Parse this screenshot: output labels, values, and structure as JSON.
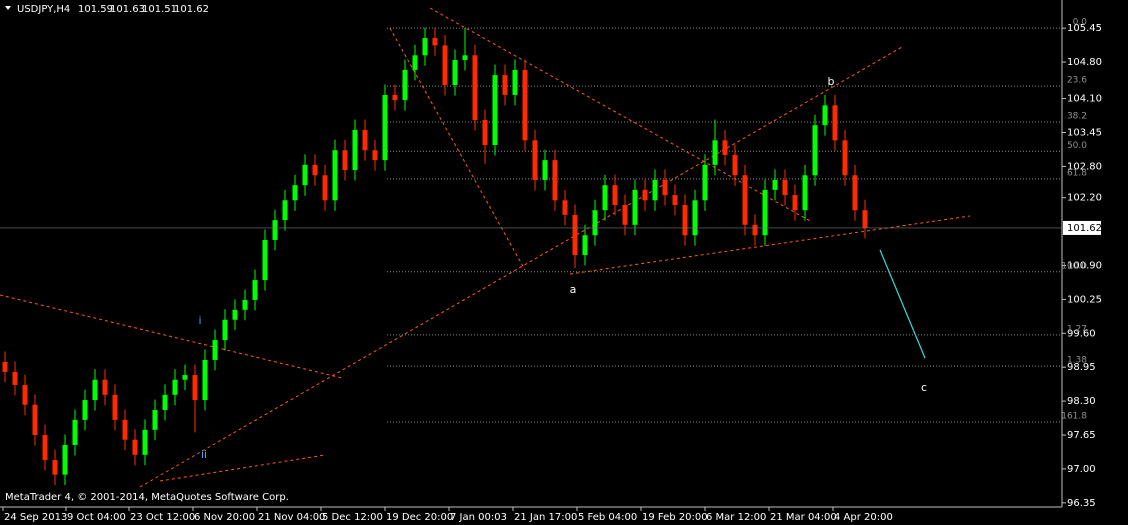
{
  "chart_data": {
    "type": "candlestick",
    "title": "USDJPY,H4",
    "header_ohlc": [
      101.59,
      101.63,
      101.51,
      101.62
    ],
    "watermark": "MetaTrader 4, © 2001-2014, MetaQuotes Software Corp.",
    "current_price": 101.62,
    "ylim": [
      96.27,
      105.99
    ],
    "yticks": [
      105.45,
      {
        "value": 104.8,
        "label": "104.80"
      },
      {
        "value": 104.1,
        "label": "104.10"
      },
      103.45,
      {
        "value": 102.8,
        "label": "102.80"
      },
      {
        "value": 102.2,
        "label": "102.20"
      },
      {
        "value": 100.9,
        "label": "100.90"
      },
      100.25,
      {
        "value": 99.6,
        "label": "99.60"
      },
      98.95,
      {
        "value": 98.3,
        "label": "98.30"
      },
      97.65,
      {
        "value": 97,
        "label": "97.00"
      },
      96.35
    ],
    "xlim": [
      0,
      106.2
    ],
    "xticks": [
      {
        "value": 0.3,
        "label": "24 Sep 2013"
      },
      {
        "value": 6.6,
        "label": "9 Oct 04:00"
      },
      {
        "value": 12.9,
        "label": "23 Oct 12:00"
      },
      {
        "value": 19.3,
        "label": "6 Nov 20:00"
      },
      {
        "value": 25.7,
        "label": "21 Nov 04:00"
      },
      {
        "value": 32.1,
        "label": "5 Dec 12:00"
      },
      {
        "value": 38.5,
        "label": "19 Dec 20:00"
      },
      {
        "value": 44.9,
        "label": "7 Jan 00:03"
      },
      {
        "value": 51.3,
        "label": "21 Jan 17:00"
      },
      {
        "value": 57.7,
        "label": "5 Feb 04:00"
      },
      {
        "value": 64.1,
        "label": "19 Feb 20:00"
      },
      {
        "value": 70.5,
        "label": "6 Mar 12:00"
      },
      {
        "value": 76.9,
        "label": "21 Mar 04:00"
      },
      {
        "value": 83.3,
        "label": "4 Apr 20:00"
      }
    ],
    "up_color": "#00ff00",
    "down_color": "#ff2a00",
    "open": [
      99.05,
      98.86,
      98.61,
      98.23,
      97.65,
      97.17,
      96.89,
      97.46,
      97.94,
      98.32,
      98.71,
      98.42,
      97.94,
      97.56,
      97.27,
      97.75,
      98.13,
      98.42,
      98.71,
      98.8,
      98.32,
      99.09,
      99.47,
      99.86,
      100.05,
      100.24,
      100.62,
      101.39,
      101.77,
      102.15,
      102.44,
      102.83,
      102.63,
      102.15,
      103.11,
      102.73,
      103.5,
      103.11,
      102.92,
      104.17,
      104.07,
      104.65,
      104.93,
      105.26,
      105.12,
      104.36,
      104.84,
      104.93,
      103.69,
      103.21,
      104.55,
      104.17,
      104.65,
      103.3,
      102.54,
      102.92,
      102.15,
      101.87,
      101.1,
      101.48,
      101.96,
      102.44,
      102.06,
      101.68,
      102.35,
      102.15,
      102.54,
      102.25,
      102.06,
      101.48,
      102.15,
      102.83,
      103.3,
      103.02,
      102.63,
      101.68,
      101.48,
      102.35,
      102.54,
      102.25,
      101.96,
      102.63,
      103.59,
      103.97,
      103.3,
      102.63,
      101.96
    ],
    "high": [
      99.25,
      99.06,
      98.81,
      98.43,
      97.85,
      97.37,
      97.66,
      98.14,
      98.52,
      98.91,
      98.91,
      98.62,
      98.14,
      97.76,
      97.95,
      98.33,
      98.62,
      98.91,
      99.0,
      99.0,
      99.29,
      99.67,
      100.06,
      100.25,
      100.44,
      100.82,
      101.59,
      101.97,
      102.35,
      102.64,
      103.03,
      103.03,
      102.83,
      103.31,
      103.31,
      103.7,
      103.7,
      103.31,
      104.37,
      104.37,
      104.85,
      105.13,
      105.46,
      105.46,
      105.32,
      105.04,
      105.45,
      105.13,
      103.89,
      104.75,
      104.75,
      104.85,
      104.85,
      103.5,
      103.12,
      103.12,
      102.35,
      102.07,
      101.68,
      102.16,
      102.64,
      102.64,
      102.26,
      102.55,
      102.55,
      102.74,
      102.74,
      102.45,
      102.26,
      102.35,
      103.03,
      103.7,
      103.5,
      103.22,
      102.83,
      101.88,
      102.55,
      102.74,
      102.74,
      102.45,
      102.83,
      103.79,
      104.17,
      104.17,
      103.5,
      102.83,
      102.16
    ],
    "low": [
      98.66,
      98.41,
      98.03,
      97.45,
      96.97,
      96.69,
      96.69,
      97.26,
      97.74,
      98.12,
      98.22,
      97.74,
      97.36,
      97.07,
      97.07,
      97.55,
      97.93,
      98.22,
      98.51,
      97.7,
      98.12,
      98.89,
      99.27,
      99.66,
      99.85,
      100.04,
      100.42,
      101.19,
      101.57,
      101.95,
      102.24,
      102.43,
      101.95,
      101.95,
      102.53,
      102.53,
      102.91,
      102.72,
      102.72,
      103.87,
      103.87,
      104.45,
      104.73,
      104.92,
      104.16,
      104.16,
      104.64,
      103.49,
      102.85,
      103.01,
      103.97,
      103.97,
      103.1,
      102.34,
      102.34,
      101.95,
      101.67,
      100.85,
      100.9,
      101.28,
      101.76,
      101.86,
      101.48,
      101.48,
      101.95,
      101.95,
      102.05,
      101.86,
      101.28,
      101.28,
      101.95,
      102.63,
      102.82,
      102.43,
      101.48,
      101.28,
      101.28,
      102.15,
      102.05,
      101.76,
      101.76,
      102.43,
      103.39,
      103.1,
      102.43,
      101.76,
      101.42
    ],
    "close": [
      98.86,
      98.61,
      98.23,
      97.65,
      97.17,
      96.89,
      97.46,
      97.94,
      98.32,
      98.71,
      98.42,
      97.94,
      97.56,
      97.27,
      97.75,
      98.13,
      98.42,
      98.71,
      98.8,
      98.32,
      99.09,
      99.47,
      99.86,
      100.05,
      100.24,
      100.62,
      101.39,
      101.77,
      102.15,
      102.44,
      102.83,
      102.63,
      102.15,
      103.11,
      102.73,
      103.5,
      103.11,
      102.92,
      104.17,
      104.07,
      104.65,
      104.93,
      105.26,
      105.12,
      104.36,
      104.84,
      104.93,
      103.69,
      103.21,
      104.55,
      104.17,
      104.65,
      103.3,
      102.54,
      102.92,
      102.15,
      101.87,
      101.1,
      101.48,
      101.96,
      102.44,
      102.06,
      101.68,
      102.35,
      102.15,
      102.54,
      102.25,
      102.06,
      101.48,
      102.15,
      102.83,
      103.3,
      103.02,
      102.63,
      101.68,
      101.48,
      102.35,
      102.54,
      102.25,
      101.96,
      102.63,
      103.59,
      103.97,
      103.3,
      102.63,
      101.96,
      101.62
    ],
    "fib_levels": [
      {
        "label": "0.0",
        "price": 105.45
      },
      {
        "label": "23.6",
        "price": 104.34
      },
      {
        "label": "38.2",
        "price": 103.65
      },
      {
        "label": "50.0",
        "price": 103.09
      },
      {
        "label": "61.8",
        "price": 102.56
      },
      {
        "label": "100.0",
        "price": 100.78
      },
      {
        "label": "1.27",
        "price": 99.57
      },
      {
        "label": "1.38",
        "price": 98.97
      },
      {
        "label": "161.8",
        "price": 97.9
      }
    ],
    "annotations": [
      "i",
      "ii",
      "a",
      "b",
      "c"
    ]
  }
}
